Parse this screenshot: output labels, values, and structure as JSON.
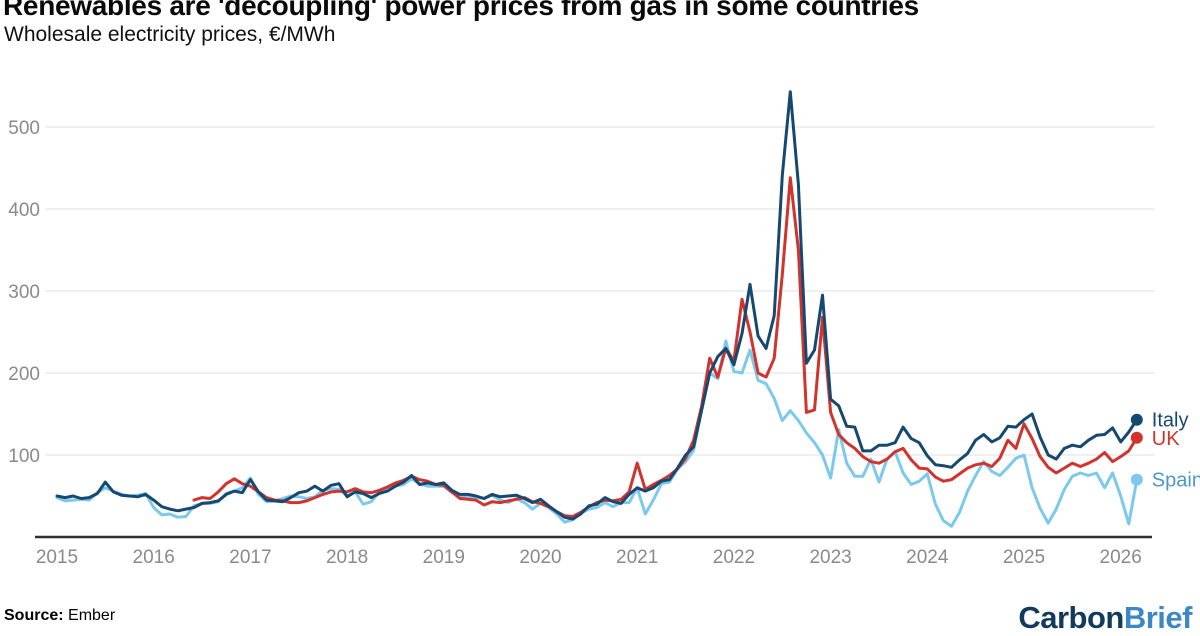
{
  "header": {
    "title": "Renewables are 'decoupling' power prices from gas in some countries",
    "subtitle": "Wholesale electricity prices, €/MWh"
  },
  "source": {
    "label": "Source:",
    "value": "Ember"
  },
  "logo": {
    "part1": "Carbon",
    "part2": "Brief",
    "part1_color": "#123a5f",
    "part2_color": "#3d87c4"
  },
  "colors": {
    "axis_line": "#2e2e2e",
    "gridline": "#e7e7e7",
    "tick_text": "#8a8a8a",
    "background": "#ffffff"
  },
  "chart_data": {
    "type": "line",
    "title": "Renewables are 'decoupling' power prices from gas in some countries",
    "subtitle": "Wholesale electricity prices, €/MWh",
    "unit": "€/MWh",
    "x_frequency": "monthly",
    "x_start": {
      "year": 2015,
      "month": 1
    },
    "x_end": {
      "year": 2026,
      "month": 3
    },
    "x_tick_years": [
      2015,
      2016,
      2017,
      2018,
      2019,
      2020,
      2021,
      2022,
      2023,
      2024,
      2025,
      2026
    ],
    "y_ticks": [
      100,
      200,
      300,
      400,
      500
    ],
    "ylim": [
      0,
      560
    ],
    "grid": "horizontal-only",
    "legend_position": "right-of-line-ends",
    "series": [
      {
        "name": "Spain",
        "color": "#7dc9ee",
        "label_color": "#4b98c9",
        "values": [
          48,
          44,
          45,
          46,
          45,
          54,
          60,
          56,
          52,
          50,
          51,
          53,
          36,
          27,
          28,
          24,
          25,
          38,
          41,
          41,
          43,
          53,
          56,
          60,
          72,
          52,
          43,
          44,
          47,
          50,
          49,
          47,
          49,
          57,
          59,
          58,
          50,
          55,
          40,
          43,
          55,
          58,
          62,
          64,
          71,
          65,
          62,
          62,
          62,
          54,
          49,
          50,
          48,
          47,
          51,
          45,
          42,
          47,
          42,
          34,
          41,
          36,
          28,
          18,
          21,
          29,
          34,
          36,
          42,
          37,
          42,
          42,
          60,
          28,
          45,
          65,
          67,
          83,
          92,
          106,
          156,
          200,
          193,
          239,
          202,
          200,
          228,
          191,
          187,
          169,
          142,
          154,
          142,
          127,
          115,
          100,
          72,
          131,
          90,
          74,
          74,
          95,
          67,
          95,
          104,
          78,
          64,
          68,
          77,
          40,
          20,
          13,
          30,
          56,
          75,
          92,
          80,
          75,
          85,
          96,
          100,
          60,
          35,
          17,
          34,
          58,
          74,
          78,
          75,
          78,
          60,
          78,
          50,
          16,
          70
        ]
      },
      {
        "name": "UK",
        "color": "#d0342c",
        "label_color": "#d0342c",
        "values": [
          null,
          null,
          null,
          null,
          null,
          null,
          null,
          null,
          null,
          null,
          null,
          null,
          null,
          null,
          null,
          null,
          null,
          45,
          48,
          47,
          55,
          65,
          71,
          65,
          62,
          55,
          48,
          45,
          44,
          42,
          42,
          44,
          48,
          52,
          55,
          56,
          55,
          59,
          55,
          54,
          57,
          61,
          66,
          69,
          74,
          70,
          68,
          64,
          63,
          55,
          47,
          46,
          45,
          39,
          43,
          42,
          44,
          46,
          48,
          43,
          41,
          37,
          31,
          26,
          25,
          30,
          37,
          42,
          45,
          44,
          46,
          55,
          90,
          58,
          64,
          69,
          75,
          83,
          96,
          118,
          160,
          218,
          195,
          230,
          215,
          290,
          250,
          200,
          195,
          218,
          320,
          438,
          350,
          152,
          155,
          268,
          152,
          125,
          115,
          108,
          98,
          92,
          90,
          95,
          104,
          108,
          94,
          84,
          83,
          73,
          68,
          70,
          77,
          84,
          88,
          90,
          86,
          96,
          118,
          108,
          138,
          120,
          98,
          85,
          78,
          84,
          90,
          86,
          90,
          95,
          103,
          92,
          98,
          105,
          121
        ]
      },
      {
        "name": "Italy",
        "color": "#17486f",
        "label_color": "#17486f",
        "values": [
          50,
          48,
          50,
          47,
          48,
          53,
          67,
          55,
          51,
          50,
          49,
          52,
          45,
          37,
          34,
          32,
          34,
          36,
          41,
          42,
          44,
          52,
          56,
          54,
          70,
          55,
          45,
          44,
          43,
          48,
          54,
          56,
          62,
          56,
          63,
          65,
          49,
          55,
          53,
          48,
          53,
          56,
          62,
          67,
          75,
          64,
          66,
          64,
          66,
          57,
          52,
          52,
          50,
          47,
          52,
          49,
          50,
          51,
          47,
          42,
          46,
          38,
          31,
          24,
          22,
          28,
          38,
          40,
          48,
          43,
          41,
          52,
          60,
          56,
          60,
          68,
          70,
          84,
          100,
          110,
          155,
          200,
          220,
          230,
          210,
          248,
          308,
          245,
          230,
          270,
          441,
          543,
          430,
          212,
          228,
          295,
          168,
          160,
          135,
          134,
          105,
          105,
          112,
          112,
          115,
          134,
          120,
          115,
          99,
          88,
          87,
          85,
          94,
          102,
          118,
          125,
          116,
          121,
          135,
          134,
          143,
          150,
          122,
          100,
          95,
          108,
          112,
          110,
          118,
          124,
          125,
          133,
          116,
          128,
          143
        ]
      }
    ]
  }
}
